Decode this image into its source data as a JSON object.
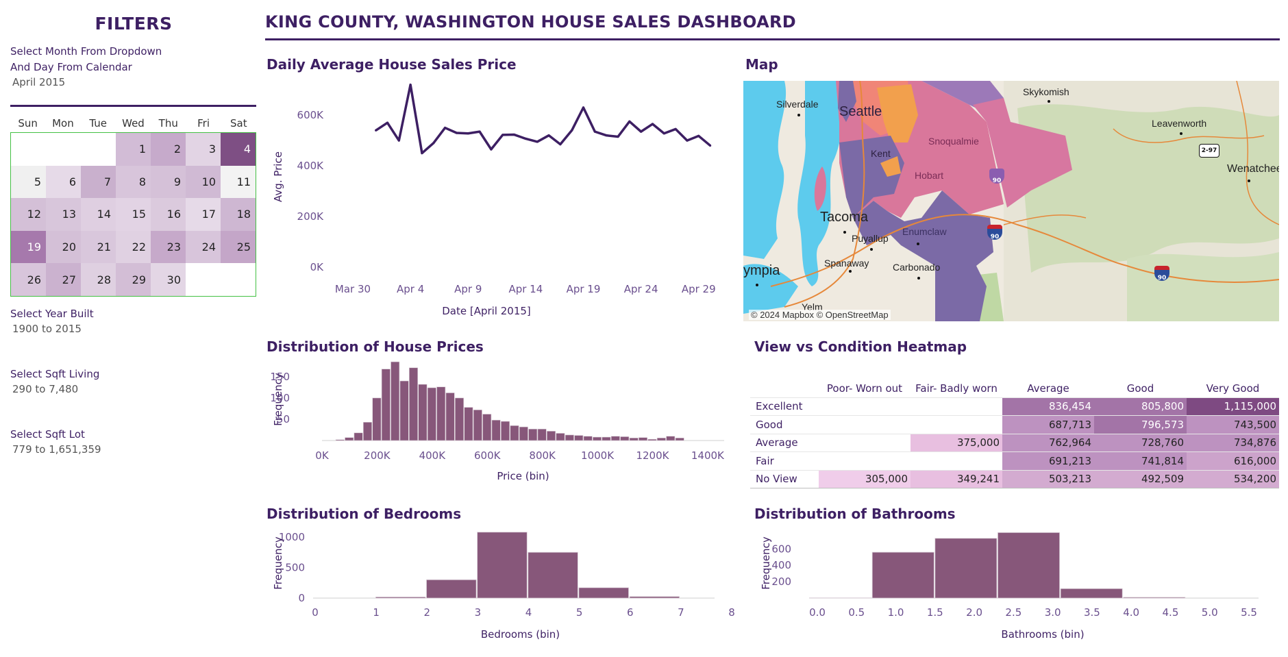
{
  "sidebar": {
    "title": "FILTERS",
    "month_prompt_line1": "Select Month From Dropdown",
    "month_prompt_line2": "And Day From Calendar",
    "month_value": "April 2015",
    "year_label": "Select Year Built",
    "year_value": "1900 to 2015",
    "sqft_living_label": "Select Sqft Living",
    "sqft_living_value": "290 to 7,480",
    "sqft_lot_label": "Select Sqft Lot",
    "sqft_lot_value": "779 to 1,651,359"
  },
  "calendar": {
    "weekdays": [
      "Sun",
      "Mon",
      "Tue",
      "Wed",
      "Thu",
      "Fri",
      "Sat"
    ],
    "cells": [
      {
        "day": "",
        "shade": "#ffffff"
      },
      {
        "day": "",
        "shade": "#ffffff"
      },
      {
        "day": "",
        "shade": "#ffffff"
      },
      {
        "day": "1",
        "shade": "#d2bcd6"
      },
      {
        "day": "2",
        "shade": "#c6aacb"
      },
      {
        "day": "3",
        "shade": "#e2d4e4"
      },
      {
        "day": "4",
        "shade": "#7e4f84"
      },
      {
        "day": "5",
        "shade": "#f0f0f0"
      },
      {
        "day": "6",
        "shade": "#e6dae8"
      },
      {
        "day": "7",
        "shade": "#c9b0cd"
      },
      {
        "day": "8",
        "shade": "#d8c5db"
      },
      {
        "day": "9",
        "shade": "#d5c1d8"
      },
      {
        "day": "10",
        "shade": "#d0bad4"
      },
      {
        "day": "11",
        "shade": "#f3f3f3"
      },
      {
        "day": "12",
        "shade": "#d4c0d7"
      },
      {
        "day": "13",
        "shade": "#d8c6db"
      },
      {
        "day": "14",
        "shade": "#dfcfe1"
      },
      {
        "day": "15",
        "shade": "#e2d3e4"
      },
      {
        "day": "16",
        "shade": "#dbcadd"
      },
      {
        "day": "17",
        "shade": "#e6dae8"
      },
      {
        "day": "18",
        "shade": "#ceb7d2"
      },
      {
        "day": "19",
        "shade": "#a679ac"
      },
      {
        "day": "20",
        "shade": "#d4c0d7"
      },
      {
        "day": "21",
        "shade": "#d9c7dc"
      },
      {
        "day": "22",
        "shade": "#e0d1e2"
      },
      {
        "day": "23",
        "shade": "#c6a9ca"
      },
      {
        "day": "24",
        "shade": "#d8c5db"
      },
      {
        "day": "25",
        "shade": "#c4a6c8"
      },
      {
        "day": "26",
        "shade": "#d8c5db"
      },
      {
        "day": "27",
        "shade": "#cbb2cf"
      },
      {
        "day": "28",
        "shade": "#dfd0e1"
      },
      {
        "day": "29",
        "shade": "#d3bed6"
      },
      {
        "day": "30",
        "shade": "#e3d6e5"
      },
      {
        "day": "",
        "shade": "#ffffff"
      },
      {
        "day": "",
        "shade": "#ffffff"
      }
    ]
  },
  "header": {
    "title": "KING COUNTY, WASHINGTON HOUSE SALES DASHBOARD"
  },
  "sections": {
    "daily_title": "Daily Average House Sales Price",
    "map_title": "Map",
    "price_dist_title": "Distribution of House Prices",
    "heatmap_title": "View vs Condition Heatmap",
    "bedrooms_title": "Distribution of Bedrooms",
    "bathrooms_title": "Distribution of Bathrooms"
  },
  "map": {
    "attribution": "© 2024 Mapbox © OpenStreetMap",
    "places": [
      "Silverdale",
      "Skykomish",
      "Leavenworth",
      "Wenatchee",
      "Tacoma",
      "Puyallup",
      "Enumclaw",
      "Spanaway",
      "Carbonado",
      "ympia",
      "Yelm",
      "Seattle",
      "Kent",
      "Snoqualmie",
      "Hobart"
    ],
    "shields": [
      "2-97",
      "90",
      "90",
      "90"
    ],
    "colors": {
      "water": "#5dcbed",
      "land": "#efeae0",
      "forest": "#c9d9b4",
      "purple": "#7b6aa6",
      "pink": "#d9779b",
      "orange": "#f2a04d"
    }
  },
  "heatmap": {
    "columns": [
      "Poor- Worn out",
      "Fair- Badly worn",
      "Average",
      "Good",
      "Very Good"
    ],
    "rows": [
      {
        "label": "Excellent",
        "cells": [
          "",
          "",
          "836,454",
          "805,800",
          "1,115,000"
        ],
        "shades": [
          "#ffffff",
          "#ffffff",
          "#a374a7",
          "#a374a7",
          "#7e4a82"
        ]
      },
      {
        "label": "Good",
        "cells": [
          "",
          "",
          "687,713",
          "796,573",
          "743,500"
        ],
        "shades": [
          "#ffffff",
          "#ffffff",
          "#bd92c0",
          "#a374a7",
          "#bd92c0"
        ]
      },
      {
        "label": "Average",
        "cells": [
          "",
          "375,000",
          "762,964",
          "728,760",
          "734,876"
        ],
        "shades": [
          "#ffffff",
          "#e8bfe0",
          "#bd92c0",
          "#bd92c0",
          "#bd92c0"
        ]
      },
      {
        "label": "Fair",
        "cells": [
          "",
          "",
          "691,213",
          "741,814",
          "616,000"
        ],
        "shades": [
          "#ffffff",
          "#ffffff",
          "#bd92c0",
          "#bd92c0",
          "#cca3cb"
        ]
      },
      {
        "label": "No View",
        "cells": [
          "305,000",
          "349,241",
          "503,213",
          "492,509",
          "534,200"
        ],
        "shades": [
          "#f0cdea",
          "#e8bfe0",
          "#d3abd0",
          "#d3abd0",
          "#d3abd0"
        ]
      }
    ]
  },
  "chart_data": [
    {
      "type": "line",
      "title": "Daily Average House Sales Price",
      "xlabel": "Date [April 2015]",
      "ylabel": "Avg. Price",
      "xticks": [
        "Mar 30",
        "Apr 4",
        "Apr 9",
        "Apr 14",
        "Apr 19",
        "Apr 24",
        "Apr 29"
      ],
      "yticks": [
        "0K",
        "200K",
        "400K",
        "600K"
      ],
      "ylim": [
        0,
        730000
      ],
      "x": [
        "2015-04-01",
        "2015-04-02",
        "2015-04-03",
        "2015-04-04",
        "2015-04-05",
        "2015-04-06",
        "2015-04-07",
        "2015-04-08",
        "2015-04-09",
        "2015-04-10",
        "2015-04-11",
        "2015-04-12",
        "2015-04-13",
        "2015-04-14",
        "2015-04-15",
        "2015-04-16",
        "2015-04-17",
        "2015-04-18",
        "2015-04-19",
        "2015-04-20",
        "2015-04-21",
        "2015-04-22",
        "2015-04-23",
        "2015-04-24",
        "2015-04-25",
        "2015-04-26",
        "2015-04-27",
        "2015-04-28",
        "2015-04-29",
        "2015-04-30"
      ],
      "values": [
        540000,
        570000,
        500000,
        720000,
        450000,
        490000,
        550000,
        530000,
        528000,
        535000,
        465000,
        522000,
        523000,
        507000,
        495000,
        520000,
        485000,
        540000,
        630000,
        535000,
        520000,
        515000,
        575000,
        535000,
        565000,
        528000,
        545000,
        500000,
        518000,
        480000
      ],
      "color": "#3d1f63",
      "grid": false
    },
    {
      "type": "bar",
      "title": "Distribution of House Prices",
      "xlabel": "Price (bin)",
      "ylabel": "Frequency",
      "xticks": [
        "0K",
        "200K",
        "400K",
        "600K",
        "800K",
        "1000K",
        "1200K",
        "1400K"
      ],
      "yticks": [
        "50",
        "100",
        "150"
      ],
      "bin_start": 50000,
      "bin_width": 33333,
      "values": [
        2,
        7,
        18,
        43,
        100,
        168,
        185,
        140,
        171,
        132,
        124,
        126,
        112,
        100,
        78,
        72,
        62,
        48,
        45,
        35,
        32,
        27,
        27,
        22,
        17,
        13,
        12,
        10,
        8,
        8,
        10,
        9,
        6,
        7,
        3,
        6,
        10,
        6
      ],
      "ylim": [
        0,
        190
      ],
      "color": "#87577a",
      "grid": false
    },
    {
      "type": "bar",
      "title": "Distribution of Bedrooms",
      "xlabel": "Bedrooms (bin)",
      "ylabel": "Frequency",
      "xticks": [
        "0",
        "1",
        "2",
        "3",
        "4",
        "5",
        "6",
        "7",
        "8"
      ],
      "yticks": [
        "0",
        "500",
        "1000"
      ],
      "categories": [
        "1",
        "2",
        "3",
        "4",
        "5",
        "6"
      ],
      "values": [
        18,
        300,
        1080,
        750,
        170,
        25
      ],
      "ylim": [
        0,
        1100
      ],
      "color": "#87577a",
      "grid": false
    },
    {
      "type": "bar",
      "title": "Distribution of Bathrooms",
      "xlabel": "Bathrooms (bin)",
      "ylabel": "Frequency",
      "xticks": [
        "0.0",
        "0.5",
        "1.0",
        "1.5",
        "2.0",
        "2.5",
        "3.0",
        "3.5",
        "4.0",
        "4.5",
        "5.0",
        "5.5"
      ],
      "yticks": [
        "200",
        "400",
        "600"
      ],
      "categories": [
        "0.0",
        "0.8",
        "1.6",
        "2.4",
        "3.2",
        "4.0"
      ],
      "values": [
        3,
        560,
        730,
        800,
        115,
        10
      ],
      "ylim": [
        0,
        820
      ],
      "color": "#87577a",
      "grid": false
    }
  ]
}
